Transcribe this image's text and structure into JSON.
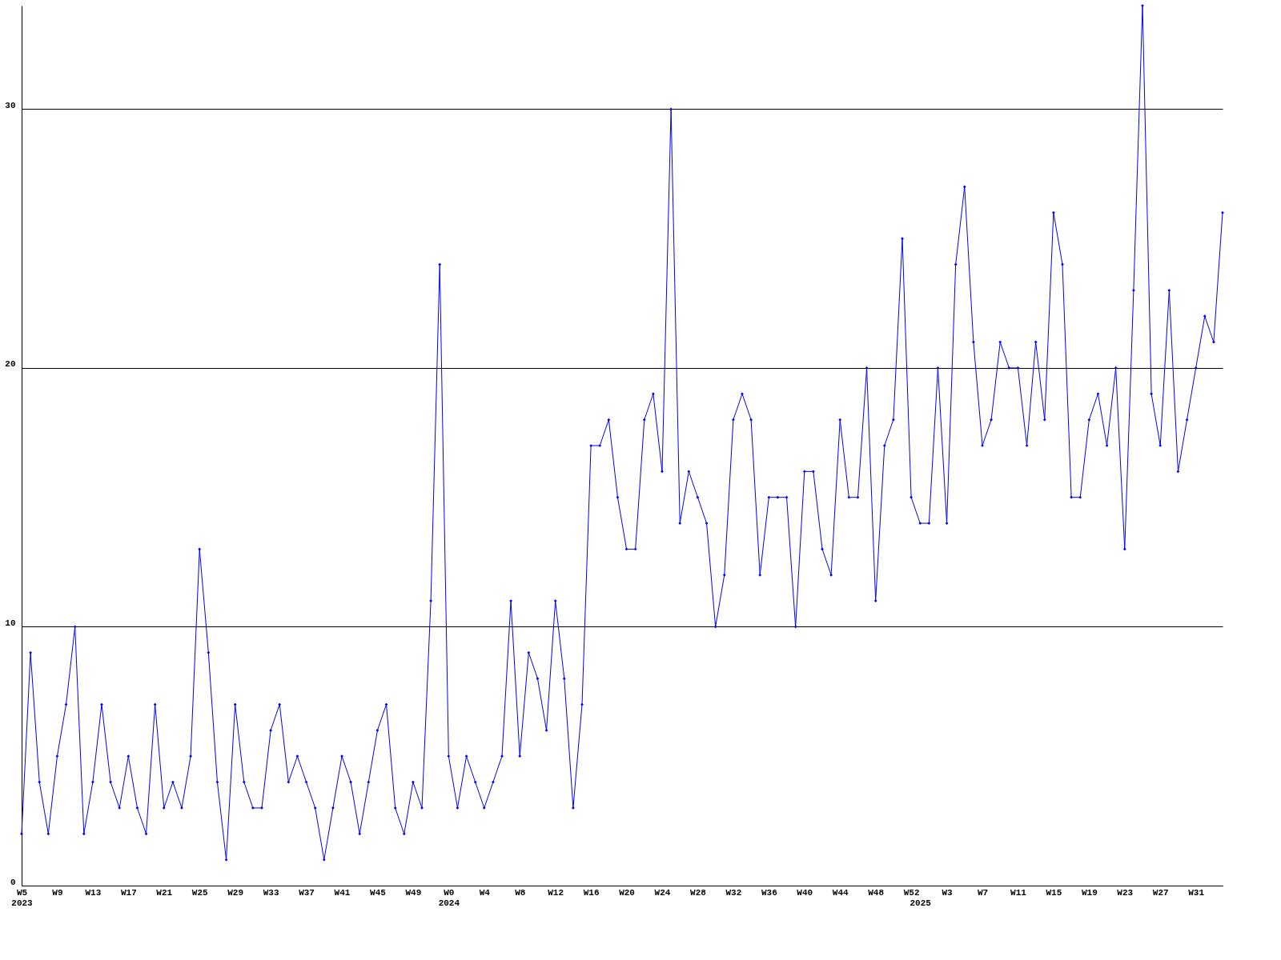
{
  "chart_data": {
    "type": "line",
    "categories": [
      "W5\n2023",
      null,
      null,
      null,
      "W9",
      null,
      null,
      null,
      "W13",
      null,
      null,
      null,
      "W17",
      null,
      null,
      null,
      "W21",
      null,
      null,
      null,
      "W25",
      null,
      null,
      null,
      "W29",
      null,
      null,
      null,
      "W33",
      null,
      null,
      null,
      "W37",
      null,
      null,
      null,
      "W41",
      null,
      null,
      null,
      "W45",
      null,
      null,
      null,
      "W49",
      null,
      null,
      null,
      "W0\n2024",
      null,
      null,
      null,
      "W4",
      null,
      null,
      null,
      "W8",
      null,
      null,
      null,
      "W12",
      null,
      null,
      null,
      "W16",
      null,
      null,
      null,
      "W20",
      null,
      null,
      null,
      "W24",
      null,
      null,
      null,
      "W28",
      null,
      null,
      null,
      "W32",
      null,
      null,
      null,
      "W36",
      null,
      null,
      null,
      "W40",
      null,
      null,
      null,
      "W44",
      null,
      null,
      null,
      "W48",
      null,
      null,
      null,
      "W52",
      "\n2025",
      null,
      null,
      "W3",
      null,
      null,
      null,
      "W7",
      null,
      null,
      null,
      "W11",
      null,
      null,
      null,
      "W15",
      null,
      null,
      null,
      "W19",
      null,
      null,
      null,
      "W23",
      null,
      null,
      null,
      "W27",
      null,
      null,
      null,
      "W31",
      null,
      null,
      null
    ],
    "series": [
      {
        "color": "#0000ff",
        "values": [
          2,
          9,
          4,
          2,
          5,
          7,
          10,
          2,
          4,
          7,
          4,
          3,
          5,
          3,
          2,
          7,
          3,
          4,
          3,
          5,
          13,
          9,
          4,
          1,
          7,
          4,
          3,
          3,
          6,
          7,
          4,
          5,
          4,
          3,
          1,
          3,
          5,
          4,
          2,
          4,
          6,
          7,
          3,
          2,
          4,
          3,
          11,
          24,
          5,
          3,
          5,
          4,
          3,
          4,
          5,
          11,
          5,
          9,
          8,
          6,
          11,
          8,
          3,
          7,
          17,
          17,
          18,
          15,
          13,
          13,
          18,
          19,
          16,
          30,
          14,
          16,
          15,
          14,
          10,
          12,
          18,
          19,
          18,
          12,
          15,
          15,
          15,
          10,
          16,
          16,
          13,
          12,
          18,
          15,
          15,
          20,
          11,
          17,
          18,
          25,
          15,
          14,
          14,
          20,
          14,
          24,
          27,
          21,
          17,
          18,
          21,
          20,
          20,
          17,
          21,
          18,
          26,
          24,
          15,
          15,
          18,
          19,
          17,
          20,
          13,
          23,
          34,
          19,
          17,
          23,
          16,
          18,
          20,
          22,
          21,
          26
        ]
      }
    ],
    "ylim": [
      0,
      34
    ],
    "yticks": [
      0,
      10,
      20,
      30
    ],
    "grid": "y",
    "marker": "diamond",
    "line_style": "solid"
  }
}
